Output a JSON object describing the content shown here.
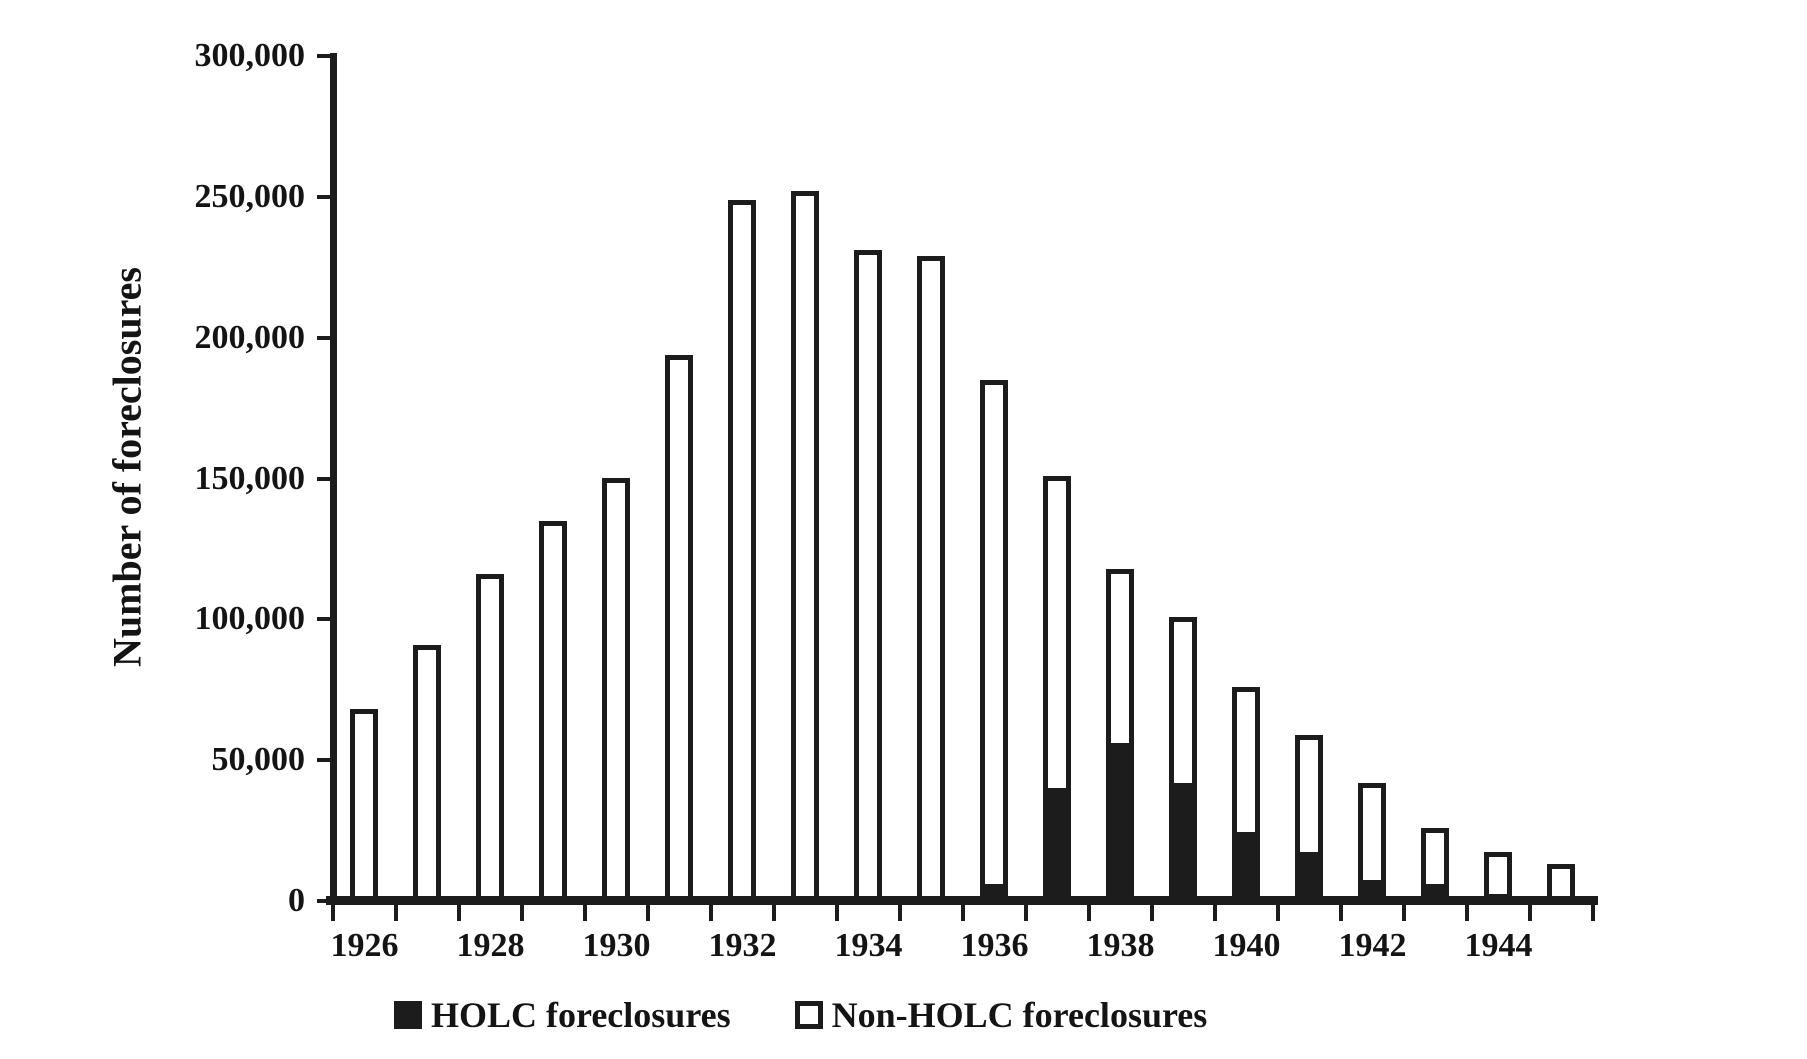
{
  "figure": {
    "background": "#ffffff",
    "text_color": "#141414",
    "line_color": "#1c1c1c"
  },
  "y_axis": {
    "title": "Number of foreclosures",
    "tick_labels": [
      "0",
      "50,000",
      "100,000",
      "150,000",
      "200,000",
      "250,000",
      "300,000"
    ]
  },
  "x_axis": {
    "tick_labels": [
      "1926",
      "1928",
      "1930",
      "1932",
      "1934",
      "1936",
      "1938",
      "1940",
      "1942",
      "1944"
    ]
  },
  "legend": {
    "items": [
      {
        "label": "HOLC foreclosures",
        "swatch": "black-filled-square"
      },
      {
        "label": "Non-HOLC foreclosures",
        "swatch": "white-outlined-square"
      }
    ]
  },
  "chart_data": {
    "type": "bar",
    "stacked": true,
    "title": "",
    "xlabel": "",
    "ylabel": "Number of foreclosures",
    "ylim": [
      0,
      300000
    ],
    "y_ticks": [
      0,
      50000,
      100000,
      150000,
      200000,
      250000,
      300000
    ],
    "grid": false,
    "legend_position": "bottom",
    "categories": [
      1926,
      1927,
      1928,
      1929,
      1930,
      1931,
      1932,
      1933,
      1934,
      1935,
      1936,
      1937,
      1938,
      1939,
      1940,
      1941,
      1942,
      1943,
      1944,
      1945
    ],
    "x_labels_shown_every": 2,
    "series": [
      {
        "name": "HOLC foreclosures",
        "fill": "#1c1c1c",
        "values": [
          0,
          0,
          0,
          0,
          0,
          0,
          0,
          0,
          0,
          0,
          6000,
          40000,
          56000,
          42000,
          24500,
          17500,
          7500,
          6000,
          2500,
          0
        ]
      },
      {
        "name": "Non-HOLC foreclosures",
        "fill": "#ffffff",
        "values": [
          68000,
          91000,
          116000,
          135000,
          150000,
          194000,
          249000,
          252000,
          231000,
          229000,
          179000,
          111000,
          62000,
          59000,
          51500,
          41500,
          34500,
          20000,
          15000,
          13000
        ]
      }
    ],
    "totals": [
      68000,
      91000,
      116000,
      135000,
      150000,
      194000,
      249000,
      252000,
      231000,
      229000,
      185000,
      151000,
      118000,
      101000,
      76000,
      59000,
      42000,
      26000,
      17500,
      13000
    ]
  }
}
